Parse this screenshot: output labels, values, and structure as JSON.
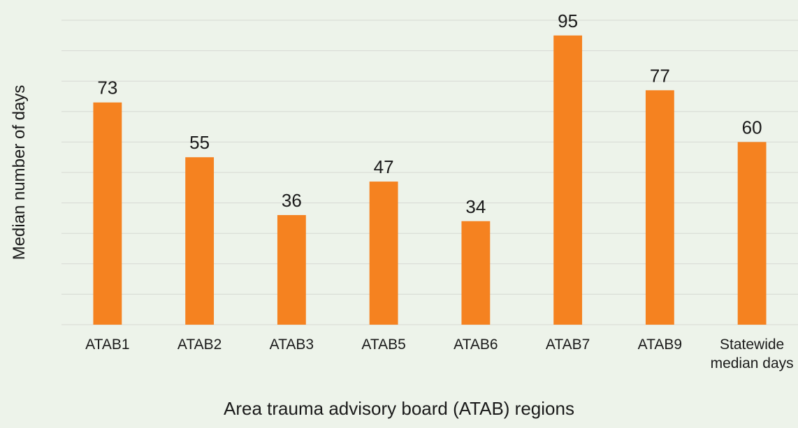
{
  "chart_data": {
    "type": "bar",
    "x_label": "Area trauma advisory board (ATAB) regions",
    "y_label": "Median number of days",
    "categories": [
      "ATAB1",
      "ATAB2",
      "ATAB3",
      "ATAB5",
      "ATAB6",
      "ATAB7",
      "ATAB9",
      "Statewide median days"
    ],
    "values": [
      73,
      55,
      36,
      47,
      34,
      95,
      77,
      60
    ],
    "color": "#f58220",
    "ylim": [
      0,
      100
    ],
    "yticks": [
      0,
      10,
      20,
      30,
      40,
      50,
      60,
      70,
      80,
      90,
      100
    ],
    "grid": true
  }
}
